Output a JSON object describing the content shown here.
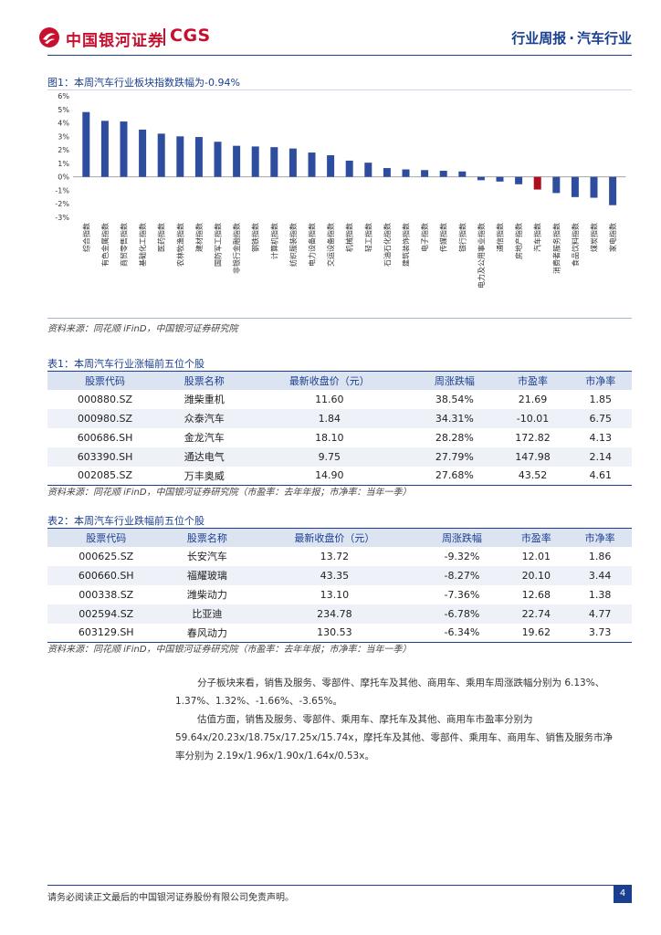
{
  "header": {
    "brand_cn": "中国银河证券",
    "brand_en": "CGS",
    "report_type": "行业周报",
    "sector": "汽车行业"
  },
  "figure1": {
    "title": "图1：本周汽车行业板块指数跌幅为-0.94%",
    "source": "资料来源：同花顺 iFinD，中国银河证券研究院"
  },
  "chart_data": {
    "type": "bar",
    "title": "本周汽车行业板块指数跌幅为-0.94%",
    "ylim": [
      -3,
      6
    ],
    "yticks": [
      "6%",
      "5%",
      "4%",
      "3%",
      "2%",
      "1%",
      "0%",
      "-1%",
      "-2%",
      "-3%"
    ],
    "categories": [
      "综合指数",
      "有色金属指数",
      "商贸零售指数",
      "基础化工指数",
      "医药指数",
      "农林牧渔指数",
      "建材指数",
      "国防军工指数",
      "非银行金融指数",
      "钢铁指数",
      "计算机指数",
      "纺织服装指数",
      "电力设备指数",
      "交运设备指数",
      "机械指数",
      "轻工指数",
      "石油石化指数",
      "建筑装饰指数",
      "电子指数",
      "传媒指数",
      "银行指数",
      "电力及公用事业指数",
      "通信指数",
      "房地产指数",
      "汽车指数",
      "消费者服务指数",
      "食品饮料指数",
      "煤炭指数",
      "家电指数"
    ],
    "values": [
      4.8,
      4.15,
      4.1,
      3.5,
      3.2,
      3.0,
      2.95,
      2.6,
      2.3,
      2.25,
      2.2,
      2.1,
      1.8,
      1.6,
      1.2,
      1.05,
      0.65,
      0.55,
      0.5,
      0.45,
      0.4,
      -0.25,
      -0.35,
      -0.55,
      -0.94,
      -1.2,
      -1.5,
      -1.55,
      -2.1
    ],
    "highlight": "汽车指数",
    "bar_color": "#2e4d9e",
    "highlight_color": "#b00d1e"
  },
  "table1": {
    "title": "表1：本周汽车行业涨幅前五位个股",
    "headers": [
      "股票代码",
      "股票名称",
      "最新收盘价（元）",
      "周涨跌幅",
      "市盈率",
      "市净率"
    ],
    "rows": [
      [
        "000880.SZ",
        "潍柴重机",
        "11.60",
        "38.54%",
        "21.69",
        "1.85"
      ],
      [
        "000980.SZ",
        "众泰汽车",
        "1.84",
        "34.31%",
        "-10.01",
        "6.75"
      ],
      [
        "600686.SH",
        "金龙汽车",
        "18.10",
        "28.28%",
        "172.82",
        "4.13"
      ],
      [
        "603390.SH",
        "通达电气",
        "9.75",
        "27.79%",
        "147.98",
        "2.14"
      ],
      [
        "002085.SZ",
        "万丰奥威",
        "14.90",
        "27.68%",
        "43.52",
        "4.61"
      ]
    ],
    "source": "资料来源：同花顺 iFinD，中国银河证券研究院（市盈率：去年年报；市净率：当年一季）"
  },
  "table2": {
    "title": "表2：本周汽车行业跌幅前五位个股",
    "headers": [
      "股票代码",
      "股票名称",
      "最新收盘价（元）",
      "周涨跌幅",
      "市盈率",
      "市净率"
    ],
    "rows": [
      [
        "000625.SZ",
        "长安汽车",
        "13.72",
        "-9.32%",
        "12.01",
        "1.86"
      ],
      [
        "600660.SH",
        "福耀玻璃",
        "43.35",
        "-8.27%",
        "20.10",
        "3.44"
      ],
      [
        "000338.SZ",
        "潍柴动力",
        "13.10",
        "-7.36%",
        "12.68",
        "1.38"
      ],
      [
        "002594.SZ",
        "比亚迪",
        "234.78",
        "-6.78%",
        "22.74",
        "4.77"
      ],
      [
        "603129.SH",
        "春风动力",
        "130.53",
        "-6.34%",
        "19.62",
        "3.73"
      ]
    ],
    "source": "资料来源：同花顺 iFinD，中国银河证券研究院（市盈率：去年年报；市净率：当年一季）"
  },
  "body": {
    "p1_line1": "分子板块来看，销售及服务、零部件、摩托车及其他、商用车、乘用车周涨跌幅分别为 6.13%、",
    "p1_line2": "1.37%、1.32%、-1.66%、-3.65%。",
    "p2_line1": "估值方面，销售及服务、零部件、乘用车、摩托车及其他、商用车市盈率分别为",
    "p2_line2": "59.64x/20.23x/18.75x/17.25x/15.74x，摩托车及其他、零部件、乘用车、商用车、销售及服务市净",
    "p2_line3": "率分别为 2.19x/1.96x/1.90x/1.64x/0.53x。"
  },
  "footer": {
    "disclaimer": "请务必阅读正文最后的中国银河证券股份有限公司免责声明。",
    "page": "4"
  }
}
